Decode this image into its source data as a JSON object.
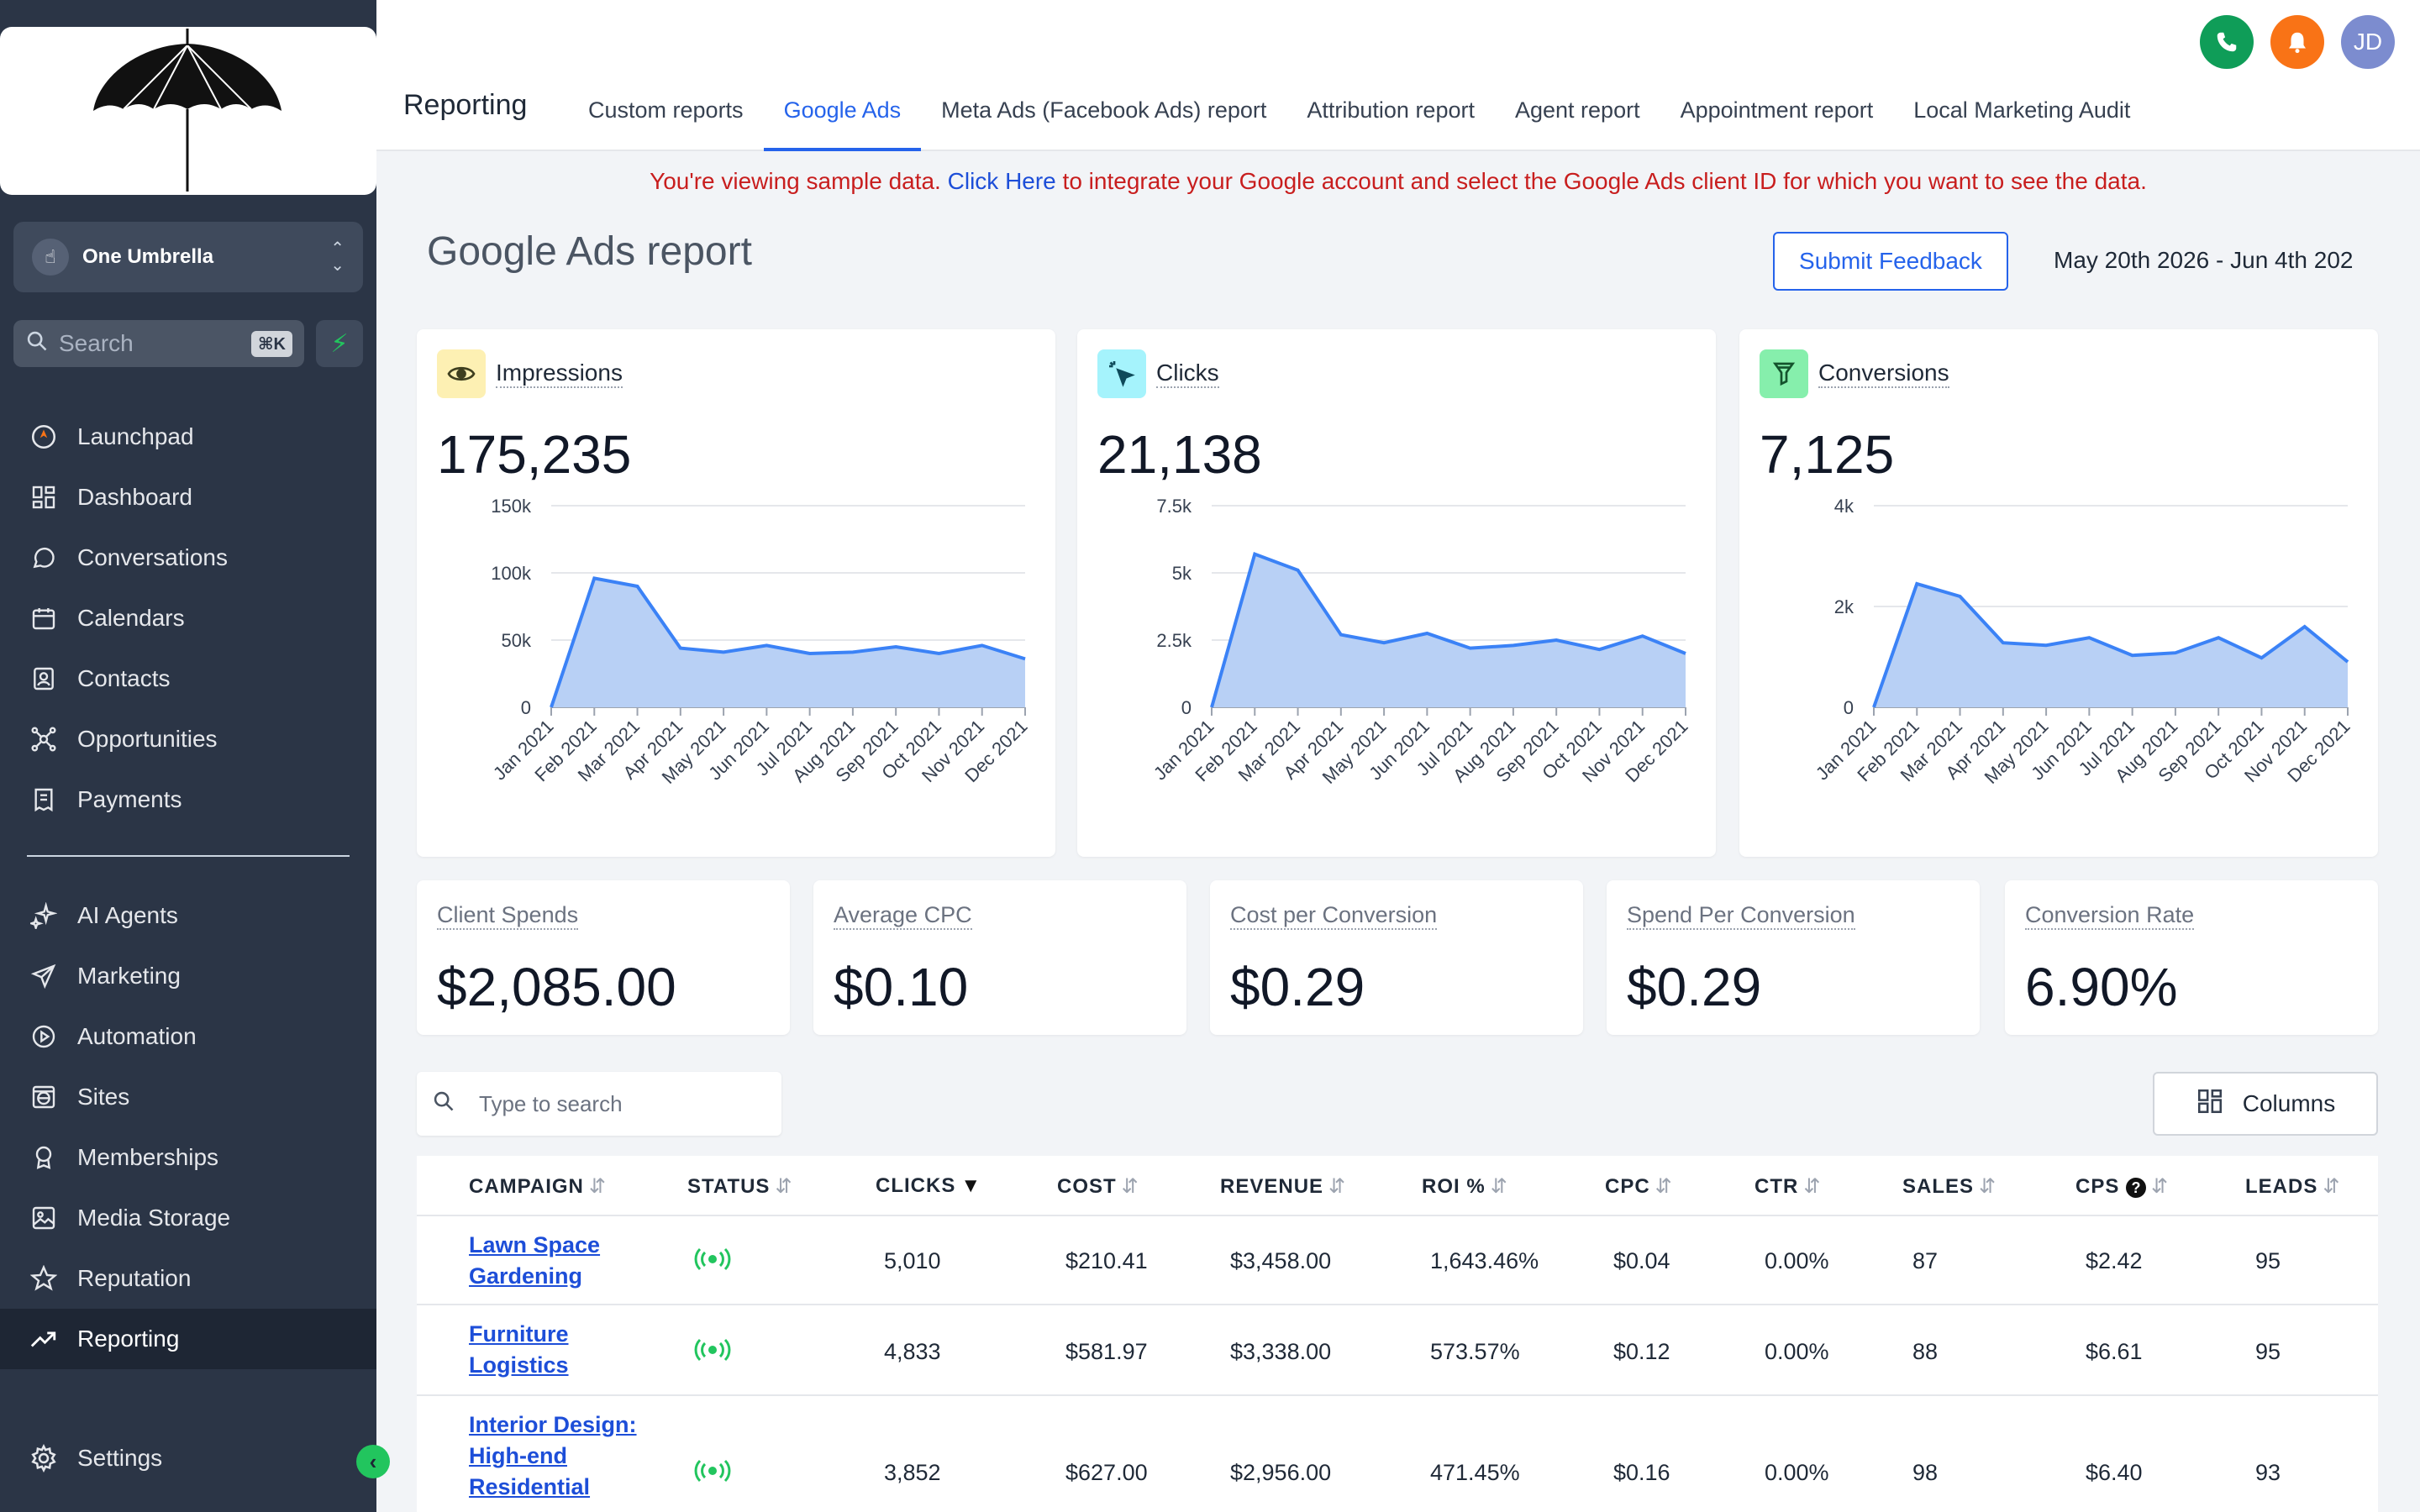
{
  "sidebar": {
    "account_name": "One Umbrella",
    "search_placeholder": "Search",
    "search_shortcut": "⌘K",
    "items_top": [
      {
        "label": "Launchpad",
        "icon": "rocket-icon"
      },
      {
        "label": "Dashboard",
        "icon": "grid-icon"
      },
      {
        "label": "Conversations",
        "icon": "chat-icon"
      },
      {
        "label": "Calendars",
        "icon": "calendar-icon"
      },
      {
        "label": "Contacts",
        "icon": "contacts-icon"
      },
      {
        "label": "Opportunities",
        "icon": "network-icon"
      },
      {
        "label": "Payments",
        "icon": "receipt-icon"
      }
    ],
    "items_bottom": [
      {
        "label": "AI Agents",
        "icon": "sparkle-icon"
      },
      {
        "label": "Marketing",
        "icon": "send-icon"
      },
      {
        "label": "Automation",
        "icon": "play-circle-icon"
      },
      {
        "label": "Sites",
        "icon": "globe-icon"
      },
      {
        "label": "Memberships",
        "icon": "badge-icon"
      },
      {
        "label": "Media Storage",
        "icon": "image-icon"
      },
      {
        "label": "Reputation",
        "icon": "star-icon"
      },
      {
        "label": "Reporting",
        "icon": "trend-icon",
        "active": true
      }
    ],
    "settings_label": "Settings"
  },
  "header": {
    "title": "Reporting",
    "tabs": [
      "Custom reports",
      "Google Ads",
      "Meta Ads (Facebook Ads) report",
      "Attribution report",
      "Agent report",
      "Appointment report",
      "Local Marketing Audit"
    ],
    "active_tab": "Google Ads",
    "avatar_initials": "JD",
    "icons": {
      "phone": "#0f9d58",
      "bell": "#f97316",
      "avatar": "#7c8ccf"
    }
  },
  "notice": {
    "before": "You're viewing sample data. ",
    "link": "Click Here",
    "after": " to integrate your Google account and select the Google Ads client ID for which you want to see the data."
  },
  "page": {
    "title": "Google Ads report",
    "feedback_label": "Submit Feedback",
    "date_range": "May 20th 2026 - Jun 4th 202"
  },
  "kpis": [
    {
      "label": "Impressions",
      "value": "175,235",
      "icon": "eye-icon",
      "icon_bg": "#fdf0b3"
    },
    {
      "label": "Clicks",
      "value": "21,138",
      "icon": "cursor-click-icon",
      "icon_bg": "#a5f3fc"
    },
    {
      "label": "Conversions",
      "value": "7,125",
      "icon": "funnel-icon",
      "icon_bg": "#86efac"
    }
  ],
  "chart_data": [
    {
      "type": "area",
      "title": "Impressions",
      "x": [
        "Jan 2021",
        "Feb 2021",
        "Mar 2021",
        "Apr 2021",
        "May 2021",
        "Jun 2021",
        "Jul 2021",
        "Aug 2021",
        "Sep 2021",
        "Oct 2021",
        "Nov 2021",
        "Dec 2021"
      ],
      "values": [
        0,
        96000,
        90000,
        44000,
        41000,
        46000,
        40000,
        41000,
        45000,
        40000,
        46000,
        36000
      ],
      "ylim": [
        0,
        150000
      ],
      "yticks": [
        {
          "v": 0,
          "label": "0"
        },
        {
          "v": 50000,
          "label": "50k"
        },
        {
          "v": 100000,
          "label": "100k"
        },
        {
          "v": 150000,
          "label": "150k"
        }
      ],
      "grid": true,
      "color": "#3b82f6"
    },
    {
      "type": "area",
      "title": "Clicks",
      "x": [
        "Jan 2021",
        "Feb 2021",
        "Mar 2021",
        "Apr 2021",
        "May 2021",
        "Jun 2021",
        "Jul 2021",
        "Aug 2021",
        "Sep 2021",
        "Oct 2021",
        "Nov 2021",
        "Dec 2021"
      ],
      "values": [
        0,
        5700,
        5100,
        2700,
        2400,
        2750,
        2200,
        2300,
        2500,
        2150,
        2650,
        2000
      ],
      "ylim": [
        0,
        7500
      ],
      "yticks": [
        {
          "v": 0,
          "label": "0"
        },
        {
          "v": 2500,
          "label": "2.5k"
        },
        {
          "v": 5000,
          "label": "5k"
        },
        {
          "v": 7500,
          "label": "7.5k"
        }
      ],
      "grid": true,
      "color": "#3b82f6"
    },
    {
      "type": "area",
      "title": "Conversions",
      "x": [
        "Jan 2021",
        "Feb 2021",
        "Mar 2021",
        "Apr 2021",
        "May 2021",
        "Jun 2021",
        "Jul 2021",
        "Aug 2021",
        "Sep 2021",
        "Oct 2021",
        "Nov 2021",
        "Dec 2021"
      ],
      "values": [
        0,
        2450,
        2200,
        1280,
        1230,
        1380,
        1030,
        1080,
        1380,
        980,
        1600,
        900
      ],
      "ylim": [
        0,
        4000
      ],
      "yticks": [
        {
          "v": 0,
          "label": "0"
        },
        {
          "v": 2000,
          "label": "2k"
        },
        {
          "v": 4000,
          "label": "4k"
        }
      ],
      "grid": true,
      "color": "#3b82f6"
    }
  ],
  "stats": [
    {
      "label": "Client Spends",
      "value": "$2,085.00"
    },
    {
      "label": "Average CPC",
      "value": "$0.10"
    },
    {
      "label": "Cost per Conversion",
      "value": "$0.29"
    },
    {
      "label": "Spend Per Conversion",
      "value": "$0.29"
    },
    {
      "label": "Conversion Rate",
      "value": "6.90%"
    }
  ],
  "table": {
    "search_placeholder": "Type to search",
    "columns_label": "Columns",
    "headers": [
      {
        "label": "CAMPAIGN",
        "sort": "⇵"
      },
      {
        "label": "STATUS",
        "sort": "⇵"
      },
      {
        "label": "CLICKS",
        "sort": "▼"
      },
      {
        "label": "COST",
        "sort": "⇵"
      },
      {
        "label": "REVENUE",
        "sort": "⇵"
      },
      {
        "label": "ROI %",
        "sort": "⇵"
      },
      {
        "label": "CPC",
        "sort": "⇵"
      },
      {
        "label": "CTR",
        "sort": "⇵"
      },
      {
        "label": "SALES",
        "sort": "⇵"
      },
      {
        "label": "CPS",
        "sort": "⇵"
      },
      {
        "label": "LEADS",
        "sort": "⇵"
      }
    ],
    "rows": [
      {
        "campaign": "Lawn Space Gardening",
        "status": "active",
        "clicks": "5,010",
        "cost": "$210.41",
        "revenue": "$3,458.00",
        "roi": "1,643.46%",
        "cpc": "$0.04",
        "ctr": "0.00%",
        "sales": "87",
        "cps": "$2.42",
        "leads": "95"
      },
      {
        "campaign": "Furniture Logistics",
        "status": "active",
        "clicks": "4,833",
        "cost": "$581.97",
        "revenue": "$3,338.00",
        "roi": "573.57%",
        "cpc": "$0.12",
        "ctr": "0.00%",
        "sales": "88",
        "cps": "$6.61",
        "leads": "95"
      },
      {
        "campaign": "Interior Design: High-end Residential",
        "status": "active",
        "clicks": "3,852",
        "cost": "$627.00",
        "revenue": "$2,956.00",
        "roi": "471.45%",
        "cpc": "$0.16",
        "ctr": "0.00%",
        "sales": "98",
        "cps": "$6.40",
        "leads": "93"
      }
    ]
  }
}
